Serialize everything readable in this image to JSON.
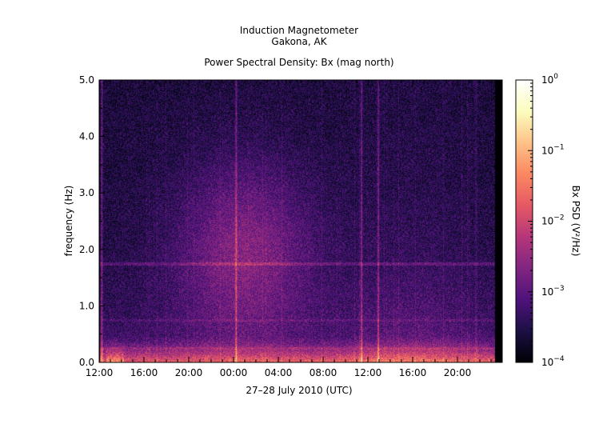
{
  "header": {
    "line1": "Induction Magnetometer",
    "line2": "Gakona, AK",
    "subtitle": "Power Spectral Density: Bx (mag north)"
  },
  "chart_data": {
    "type": "heatmap",
    "title": "Power Spectral Density: Bx (mag north)",
    "xlabel": "27–28 July 2010 (UTC)",
    "ylabel": "frequency (Hz)",
    "colorbar_label": "Bx PSD (V²/Hz)",
    "x_ticks": [
      "12:00",
      "16:00",
      "20:00",
      "00:00",
      "04:00",
      "08:00",
      "12:00",
      "16:00",
      "20:00"
    ],
    "x_tick_hours": [
      0,
      4,
      8,
      12,
      16,
      20,
      24,
      28,
      32
    ],
    "xlim_hours": [
      0,
      36
    ],
    "y_ticks": [
      "0.0",
      "1.0",
      "2.0",
      "3.0",
      "4.0",
      "5.0"
    ],
    "y_tick_values": [
      0,
      1,
      2,
      3,
      4,
      5
    ],
    "ylim": [
      0,
      5
    ],
    "colorbar_ticks": [
      {
        "base": "10",
        "exp": "0",
        "value": 1
      },
      {
        "base": "10",
        "exp": "−1",
        "value": 0.1
      },
      {
        "base": "10",
        "exp": "−2",
        "value": 0.01
      },
      {
        "base": "10",
        "exp": "−3",
        "value": 0.001
      },
      {
        "base": "10",
        "exp": "−4",
        "value": 0.0001
      }
    ],
    "color_scale": "log",
    "clim": [
      0.0001,
      1
    ],
    "colormap": [
      "#000004",
      "#1c1044",
      "#4f127b",
      "#812581",
      "#b5367a",
      "#e55964",
      "#fb8761",
      "#fec287",
      "#fcfdbf",
      "#ffffff"
    ],
    "features": {
      "low_freq_band_hz": [
        0,
        0.5
      ],
      "broadband_bursts_hours": [
        0.2,
        12.2,
        23.4,
        24.9
      ],
      "spectral_line_hz": 1.75
    },
    "grid": false,
    "legend": "colorbar-right"
  }
}
